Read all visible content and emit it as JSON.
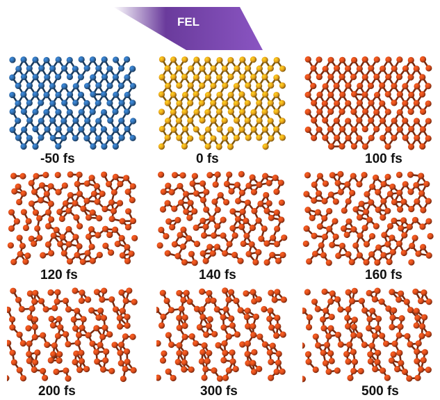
{
  "banner": {
    "label": "FEL"
  },
  "panels": [
    {
      "time": "-50 fs",
      "color": "#2f6aa8",
      "phase": "ordered"
    },
    {
      "time": "0 fs",
      "color": "#e6a019",
      "phase": "ordered"
    },
    {
      "time": "100 fs",
      "color": "#d94a1a",
      "phase": "ordered"
    },
    {
      "time": "120 fs",
      "color": "#d94a1a",
      "phase": "perturbed"
    },
    {
      "time": "140 fs",
      "color": "#d94a1a",
      "phase": "perturbed"
    },
    {
      "time": "160 fs",
      "color": "#d94a1a",
      "phase": "perturbed"
    },
    {
      "time": "200 fs",
      "color": "#d94a1a",
      "phase": "chevron"
    },
    {
      "time": "300 fs",
      "color": "#d94a1a",
      "phase": "chevron"
    },
    {
      "time": "500 fs",
      "color": "#d94a1a",
      "phase": "chevron"
    }
  ]
}
